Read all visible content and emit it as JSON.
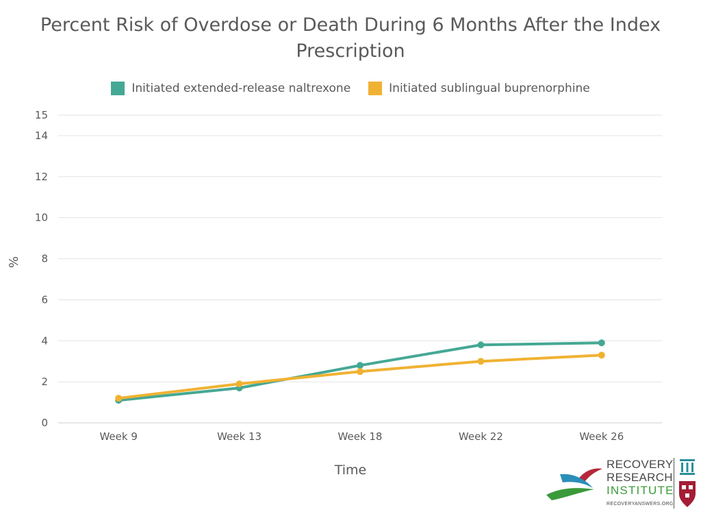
{
  "chart_data": {
    "type": "line",
    "title": "Percent Risk of Overdose or Death During 6 Months After the Index Prescription",
    "title_lines": [
      "Percent Risk of Overdose or Death During 6 Months After the Index",
      "Prescription"
    ],
    "xlabel": "Time",
    "ylabel": "%",
    "categories": [
      "Week 9",
      "Week 13",
      "Week 18",
      "Week 22",
      "Week 26"
    ],
    "ylim": [
      0,
      15
    ],
    "yticks": [
      "0",
      "2",
      "4",
      "6",
      "8",
      "10",
      "12",
      "14",
      "15"
    ],
    "ytick_values": [
      0,
      2,
      4,
      6,
      8,
      10,
      12,
      14,
      15
    ],
    "grid": true,
    "legend_position": "top-center",
    "series": [
      {
        "name": "Initiated extended-release naltrexone",
        "color": "#45a894",
        "values": [
          1.1,
          1.7,
          2.8,
          3.8,
          3.9
        ]
      },
      {
        "name": "Initiated sublingual buprenorphine",
        "color": "#f0b233",
        "values": [
          1.2,
          1.9,
          2.5,
          3.0,
          3.3
        ]
      }
    ]
  },
  "logo": {
    "line1": "RECOVERY",
    "line2": "RESEARCH",
    "line3": "INSTITUTE",
    "url": "RECOVERYANSWERS.ORG",
    "icon": "recovery-research-institute-logo-icon"
  }
}
